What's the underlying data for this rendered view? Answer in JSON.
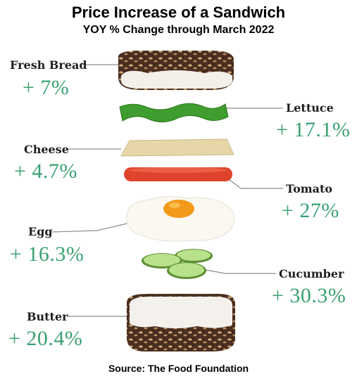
{
  "title": "Price Increase of a Sandwich",
  "subtitle": "YOY % Change through March 2022",
  "source": "Source: The Food Foundation",
  "ingredients": {
    "fresh_bread": {
      "label": "Fresh Bread",
      "change": "+ 7%"
    },
    "lettuce": {
      "label": "Lettuce",
      "change": "+ 17.1%"
    },
    "cheese": {
      "label": "Cheese",
      "change": "+ 4.7%"
    },
    "tomato": {
      "label": "Tomato",
      "change": "+ 27%"
    },
    "egg": {
      "label": "Egg",
      "change": "+ 16.3%"
    },
    "cucumber": {
      "label": "Cucumber",
      "change": "+ 30.3%"
    },
    "butter": {
      "label": "Butter",
      "change": "+ 20.4%"
    }
  },
  "colors": {
    "percent_green": "#3aa072",
    "bread_crust": "#5b3a26",
    "lettuce": "#3f9c2e",
    "cheese": "#e6d6a8",
    "tomato": "#e0432c",
    "egg_yolk": "#f39a1a",
    "cucumber": "#9fd46a"
  }
}
